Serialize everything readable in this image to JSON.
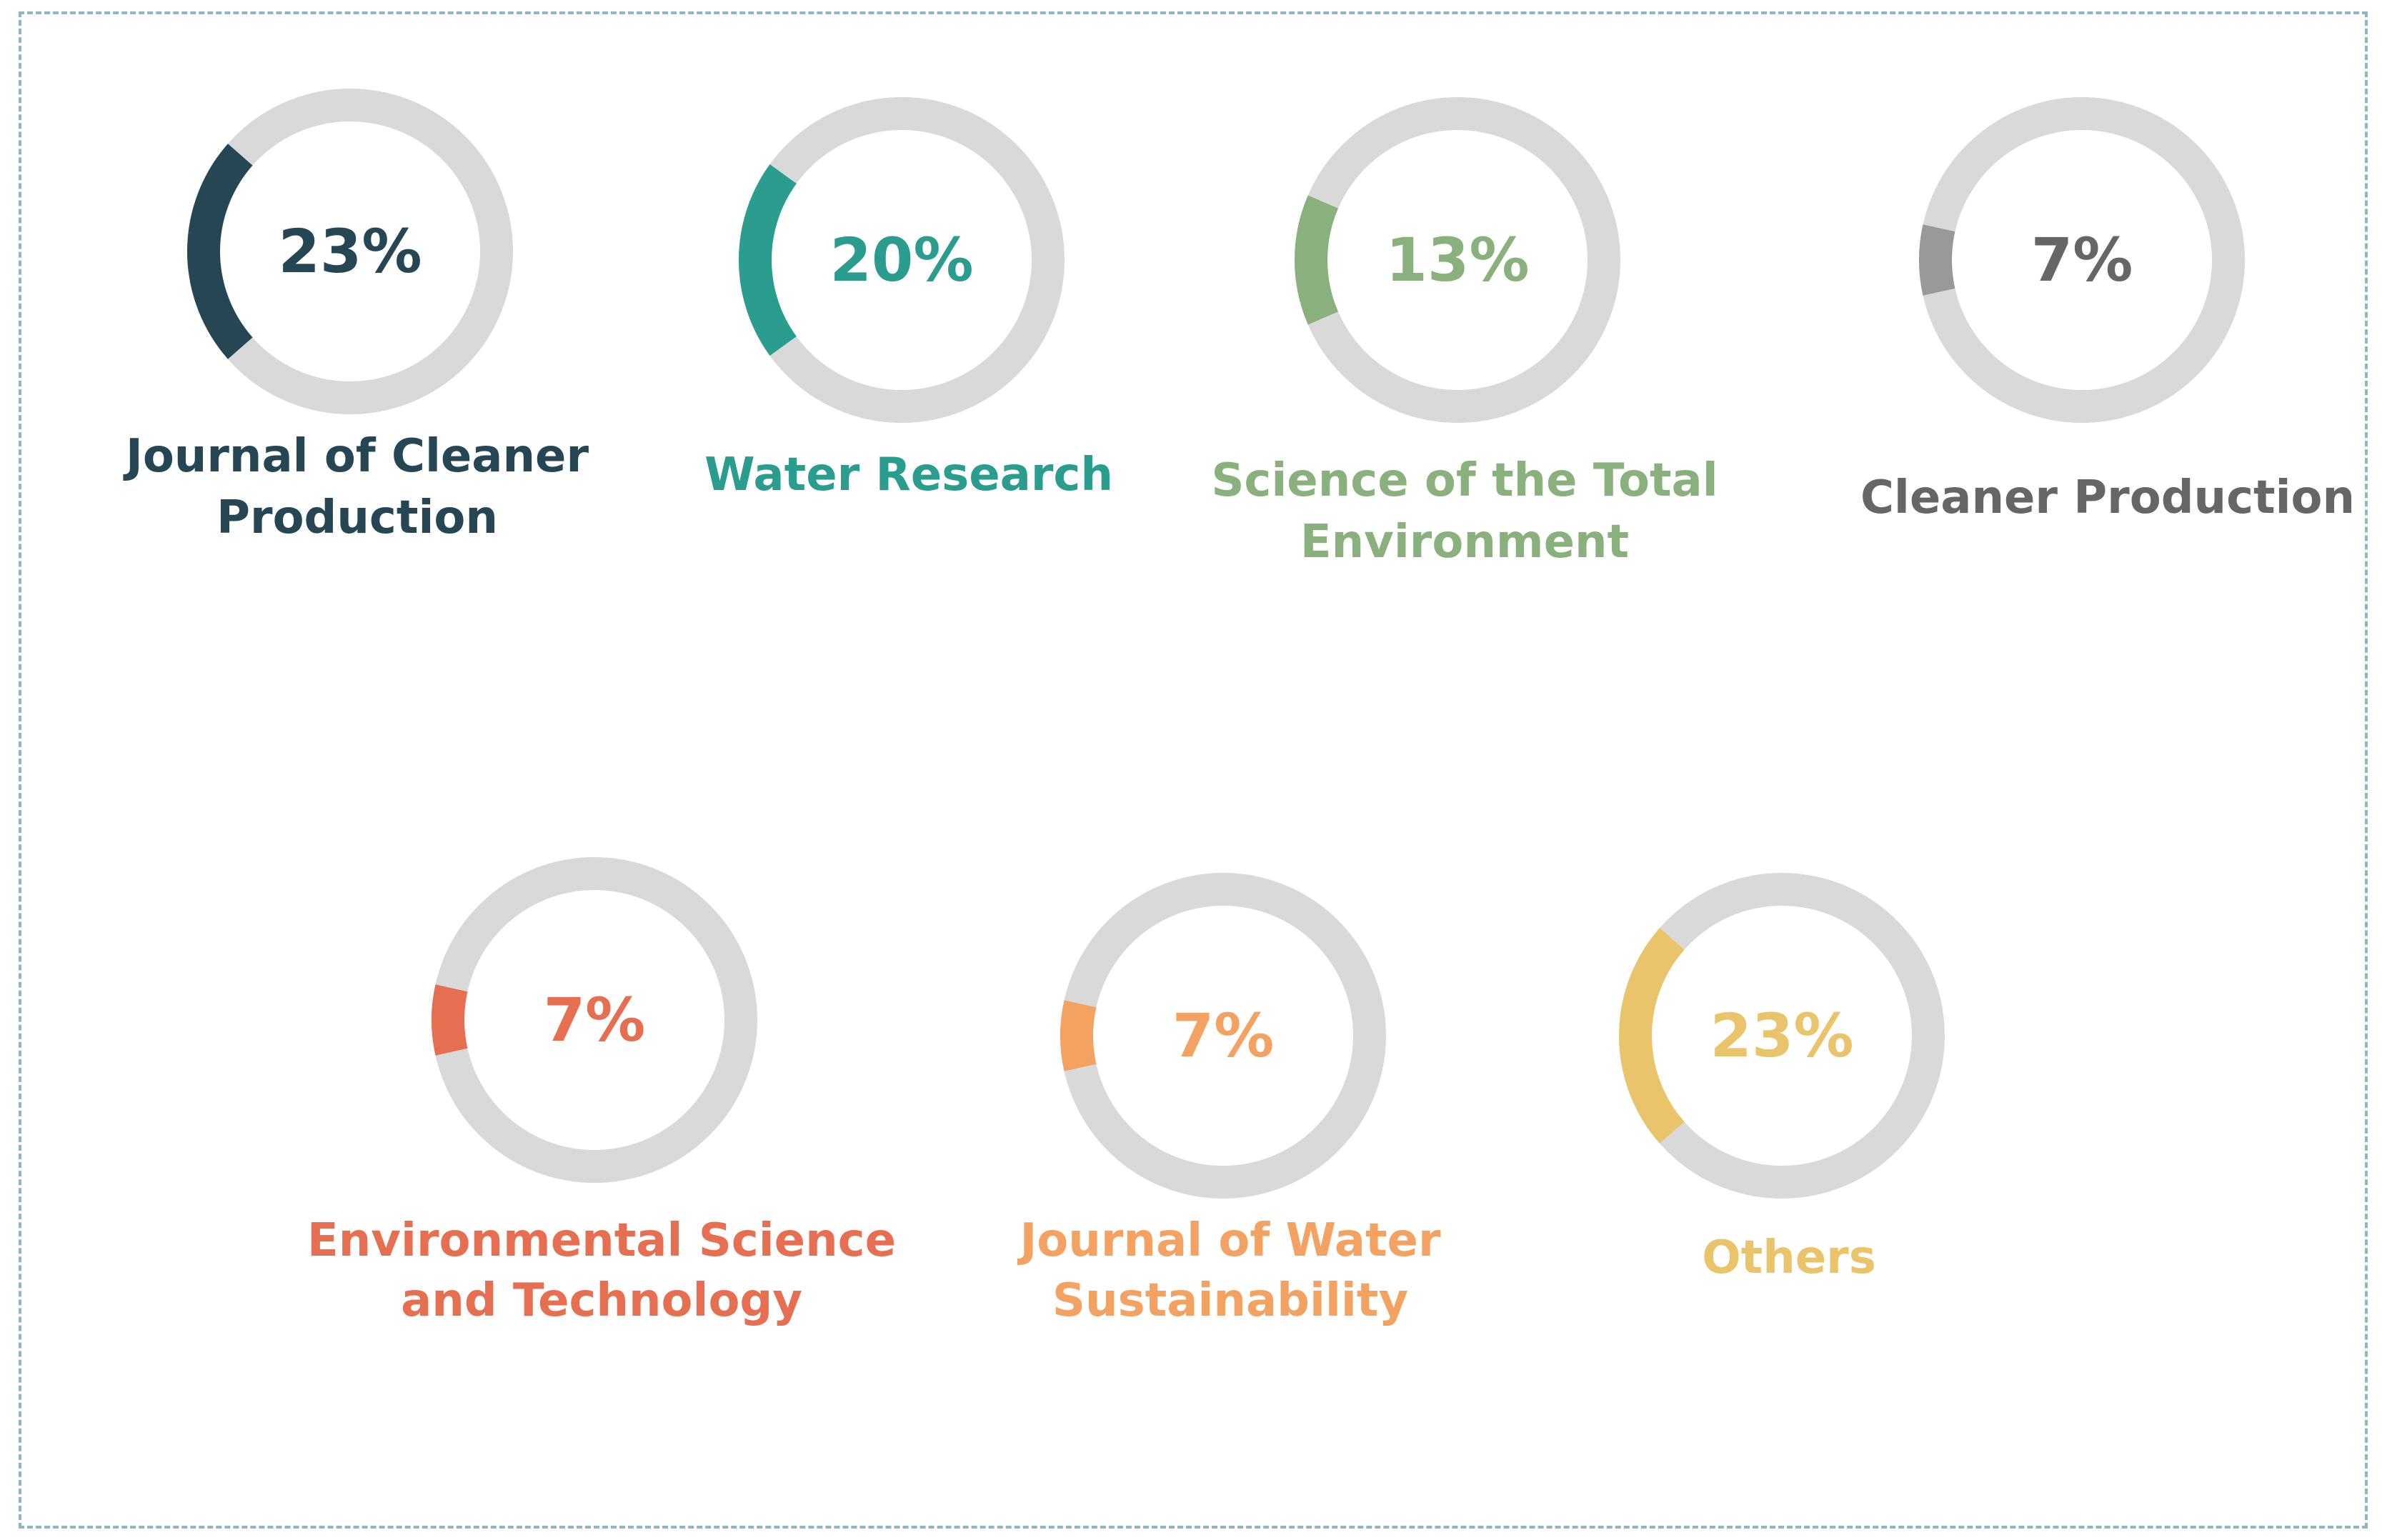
{
  "chart_data": {
    "type": "pie",
    "style": "donut-gauges",
    "title": "",
    "track_color": "#d9d9d9",
    "items": [
      {
        "label": "23%",
        "value": 23,
        "name_lines": [
          "Journal of Cleaner",
          "Production"
        ],
        "color": "#264653"
      },
      {
        "label": "20%",
        "value": 20,
        "name_lines": [
          "Water Research"
        ],
        "color": "#2a9d8f"
      },
      {
        "label": "13%",
        "value": 13,
        "name_lines": [
          "Science of the Total",
          "Environment"
        ],
        "color": "#8ab17d"
      },
      {
        "label": "7%",
        "value": 7,
        "name_lines": [
          "Cleaner Production"
        ],
        "color": "#666666",
        "arc_color": "#999999"
      },
      {
        "label": "7%",
        "value": 7,
        "name_lines": [
          "Environmental Science",
          "and Technology"
        ],
        "color": "#e76f51"
      },
      {
        "label": "7%",
        "value": 7,
        "name_lines": [
          "Journal of Water",
          "Sustainability"
        ],
        "color": "#f4a261"
      },
      {
        "label": "23%",
        "value": 23,
        "name_lines": [
          "Others"
        ],
        "color": "#e9c46a"
      }
    ]
  }
}
